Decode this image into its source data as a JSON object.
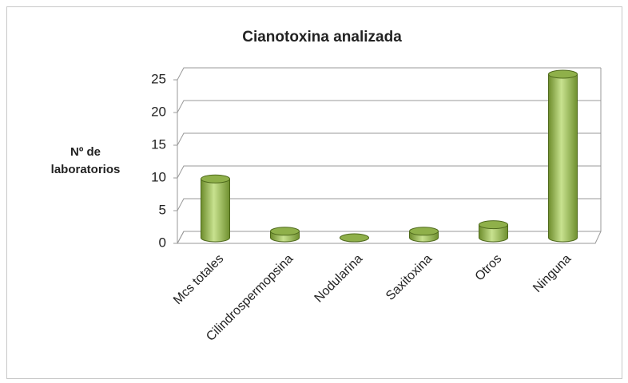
{
  "chart_data": {
    "type": "bar3d",
    "title": "Cianotoxina analizada",
    "y_label": "Nº de laboratorios",
    "categories": [
      "Mcs totales",
      "Cilindrospermopsina",
      "Nodularina",
      "Saxitoxina",
      "Otros",
      "Ninguna"
    ],
    "values": [
      9,
      1,
      0,
      1,
      2,
      25
    ],
    "color": "#9bbb59",
    "ylim": [
      0,
      25
    ],
    "yticks": [
      0,
      5,
      10,
      15,
      20,
      25
    ],
    "grid": true
  }
}
